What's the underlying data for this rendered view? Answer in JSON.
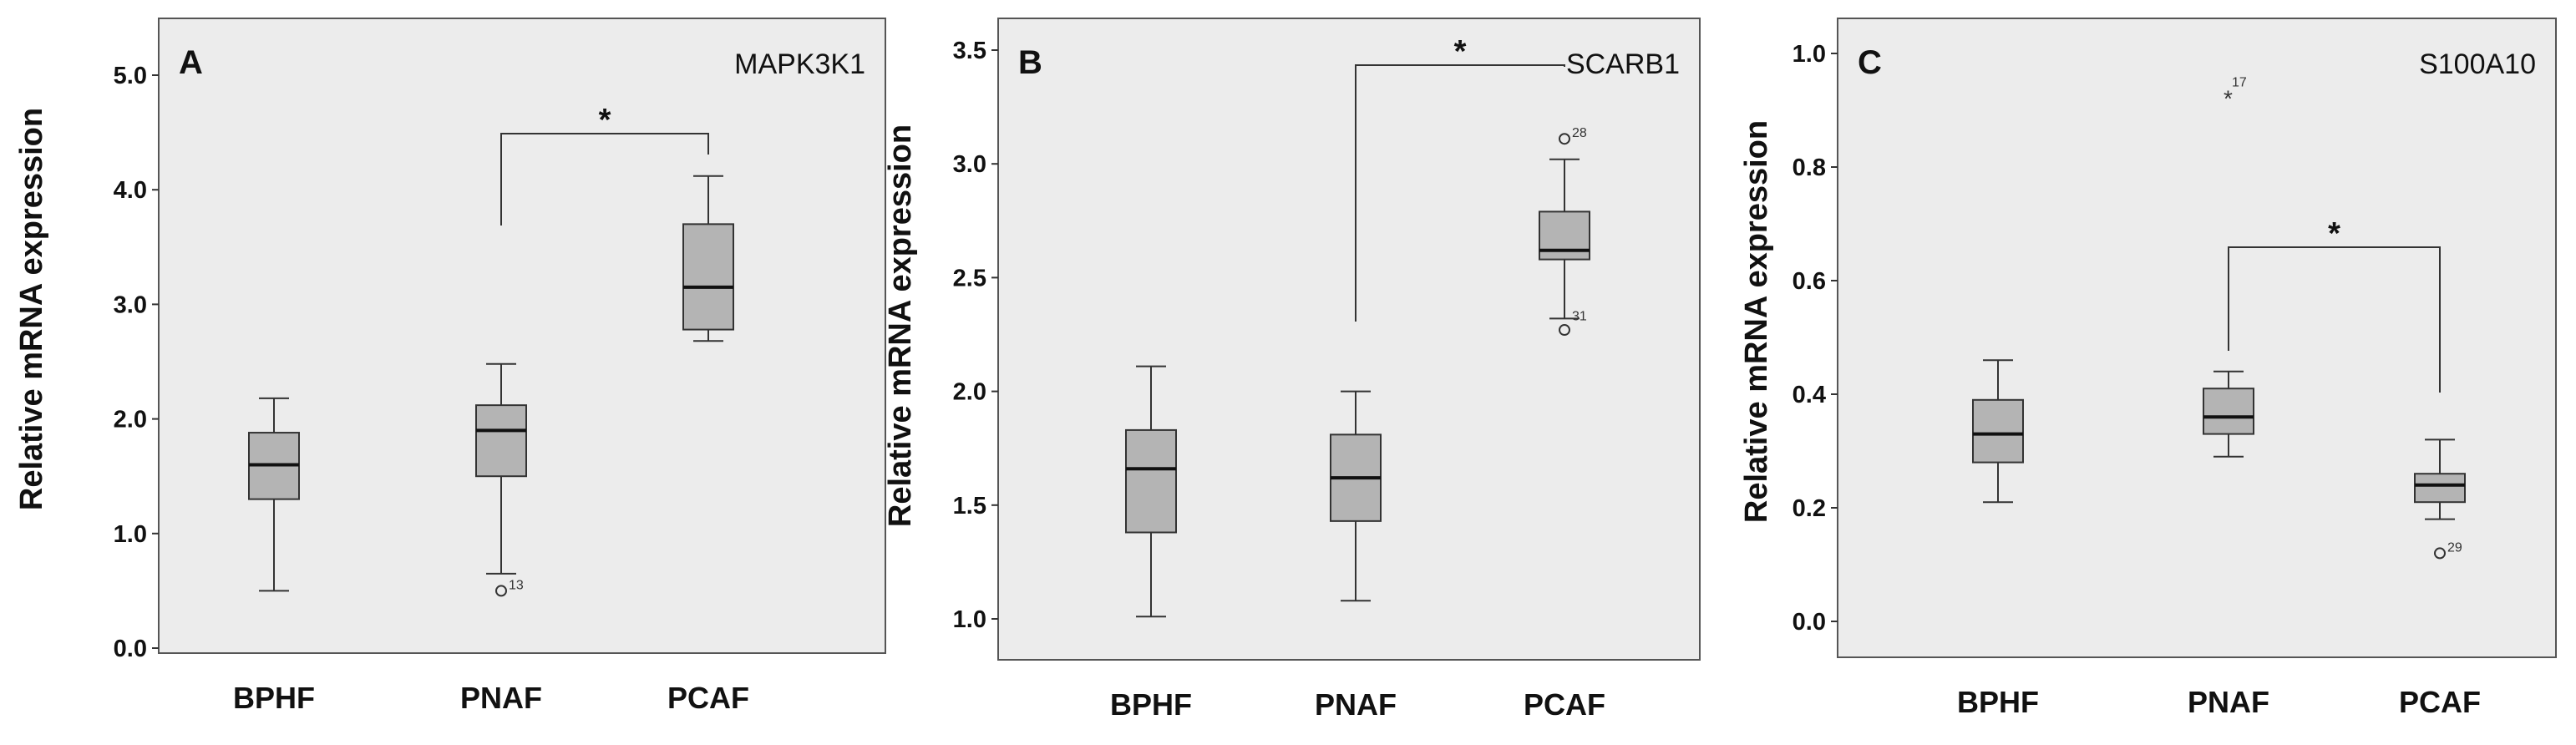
{
  "chart_data": [
    {
      "type": "box",
      "panel": "A",
      "gene": "MAPK3K1",
      "ylabel": "Relative mRNA expression",
      "ylim": [
        0.0,
        5.0
      ],
      "yticks": [
        0.0,
        1.0,
        2.0,
        3.0,
        4.0,
        5.0
      ],
      "ytick_labels": [
        "0.0",
        "1.0",
        "2.0",
        "3.0",
        "4.0",
        "5.0"
      ],
      "categories": [
        "BPHF",
        "PNAF",
        "PCAF"
      ],
      "boxes": [
        {
          "category": "BPHF",
          "min": 0.5,
          "q1": 1.3,
          "median": 1.6,
          "q3": 1.88,
          "max": 2.18
        },
        {
          "category": "PNAF",
          "min": 0.65,
          "q1": 1.5,
          "median": 1.9,
          "q3": 2.12,
          "max": 2.48
        },
        {
          "category": "PCAF",
          "min": 2.68,
          "q1": 2.78,
          "median": 3.15,
          "q3": 3.7,
          "max": 4.12
        }
      ],
      "outliers": [
        {
          "category": "PNAF",
          "value": 0.5,
          "marker": "circle",
          "label": "13"
        }
      ],
      "significance": [
        {
          "from": "PNAF",
          "to": "PCAF",
          "label": "*"
        }
      ]
    },
    {
      "type": "box",
      "panel": "B",
      "gene": "SCARB1",
      "ylabel": "Relative mRNA expression",
      "ylim": [
        1.0,
        3.5
      ],
      "yticks": [
        1.0,
        1.5,
        2.0,
        2.5,
        3.0,
        3.5
      ],
      "ytick_labels": [
        "1.0",
        "1.5",
        "2.0",
        "2.5",
        "3.0",
        "3.5"
      ],
      "categories": [
        "BPHF",
        "PNAF",
        "PCAF"
      ],
      "boxes": [
        {
          "category": "BPHF",
          "min": 1.01,
          "q1": 1.38,
          "median": 1.66,
          "q3": 1.83,
          "max": 2.11
        },
        {
          "category": "PNAF",
          "min": 1.08,
          "q1": 1.43,
          "median": 1.62,
          "q3": 1.81,
          "max": 2.0
        },
        {
          "category": "PCAF",
          "min": 2.32,
          "q1": 2.58,
          "median": 2.62,
          "q3": 2.79,
          "max": 3.02
        }
      ],
      "outliers": [
        {
          "category": "PCAF",
          "value": 3.11,
          "marker": "circle",
          "label": "28"
        },
        {
          "category": "PCAF",
          "value": 2.27,
          "marker": "circle",
          "label": ""
        }
      ],
      "whisker_labels": [
        {
          "category": "PCAF",
          "value": 2.32,
          "label": "31"
        }
      ],
      "significance": [
        {
          "from": "PNAF",
          "to": "PCAF",
          "label": "*"
        }
      ]
    },
    {
      "type": "box",
      "panel": "C",
      "gene": "S100A10",
      "ylabel": "Relative mRNA expression",
      "ylim": [
        0.0,
        1.0
      ],
      "yticks": [
        0.0,
        0.2,
        0.4,
        0.6,
        0.8,
        1.0
      ],
      "ytick_labels": [
        "0.0",
        "0.2",
        "0.4",
        "0.6",
        "0.8",
        "1.0"
      ],
      "categories": [
        "BPHF",
        "PNAF",
        "PCAF"
      ],
      "boxes": [
        {
          "category": "BPHF",
          "min": 0.21,
          "q1": 0.28,
          "median": 0.33,
          "q3": 0.39,
          "max": 0.46
        },
        {
          "category": "PNAF",
          "min": 0.29,
          "q1": 0.33,
          "median": 0.36,
          "q3": 0.41,
          "max": 0.44
        },
        {
          "category": "PCAF",
          "min": 0.18,
          "q1": 0.21,
          "median": 0.24,
          "q3": 0.26,
          "max": 0.32
        }
      ],
      "outliers": [
        {
          "category": "PNAF",
          "value": 0.93,
          "marker": "star",
          "label": "17"
        },
        {
          "category": "PCAF",
          "value": 0.12,
          "marker": "circle",
          "label": "29"
        }
      ],
      "significance": [
        {
          "from": "PNAF",
          "to": "PCAF",
          "label": "*"
        }
      ]
    }
  ]
}
